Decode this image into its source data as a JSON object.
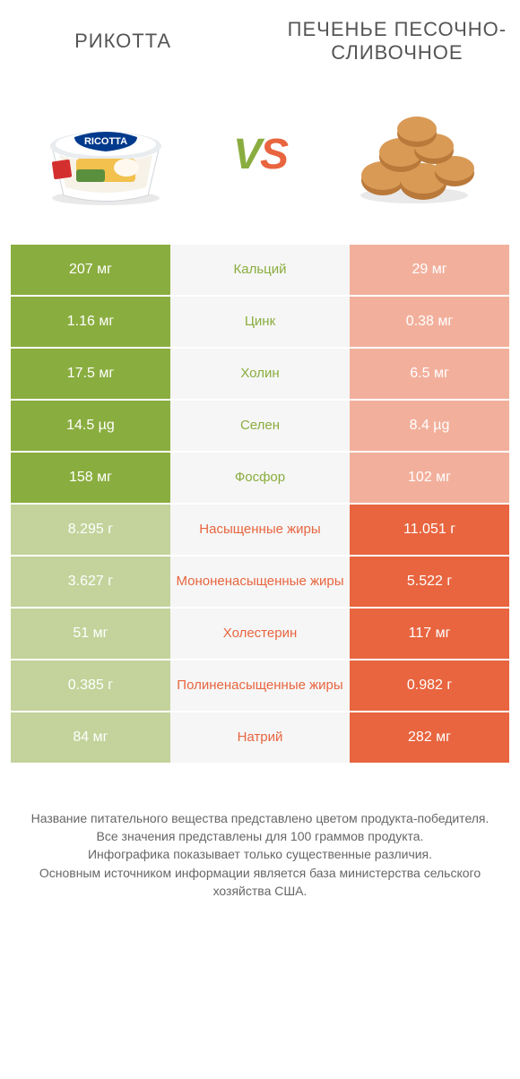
{
  "left": {
    "title": "РИКОТТА",
    "color_full": "#8aad3f",
    "color_faded": "#c3d39b"
  },
  "right": {
    "title": "ПЕЧЕНЬЕ ПЕСОЧНО-СЛИВОЧНОЕ",
    "color_full": "#e8653f",
    "color_faded": "#f2b09c"
  },
  "vs": {
    "label_v": "V",
    "label_s": "S"
  },
  "mid_bg": "#f6f6f6",
  "rows": [
    {
      "label": "Кальций",
      "left_val": "207 мг",
      "right_val": "29 мг",
      "winner": "left"
    },
    {
      "label": "Цинк",
      "left_val": "1.16 мг",
      "right_val": "0.38 мг",
      "winner": "left"
    },
    {
      "label": "Холин",
      "left_val": "17.5 мг",
      "right_val": "6.5 мг",
      "winner": "left"
    },
    {
      "label": "Селен",
      "left_val": "14.5 µg",
      "right_val": "8.4 µg",
      "winner": "left"
    },
    {
      "label": "Фосфор",
      "left_val": "158 мг",
      "right_val": "102 мг",
      "winner": "left"
    },
    {
      "label": "Насыщенные жиры",
      "left_val": "8.295 г",
      "right_val": "11.051 г",
      "winner": "right"
    },
    {
      "label": "Мононенасыщенные жиры",
      "left_val": "3.627 г",
      "right_val": "5.522 г",
      "winner": "right"
    },
    {
      "label": "Холестерин",
      "left_val": "51 мг",
      "right_val": "117 мг",
      "winner": "right"
    },
    {
      "label": "Полиненасыщенные жиры",
      "left_val": "0.385 г",
      "right_val": "0.982 г",
      "winner": "right"
    },
    {
      "label": "Натрий",
      "left_val": "84 мг",
      "right_val": "282 мг",
      "winner": "right"
    }
  ],
  "footer": {
    "line1": "Название питательного вещества представлено цветом продукта-победителя.",
    "line2": "Все значения представлены для 100 граммов продукта.",
    "line3": "Инфографика показывает только существенные различия.",
    "line4": "Основным источником информации является база министерства сельского хозяйства США."
  },
  "ricotta_art": {
    "tub_top": "#e8ecef",
    "tub_body": "#ffffff",
    "tub_shadow": "#cfd6db",
    "label_band": "#003a8c",
    "label_photo1": "#f2c14e",
    "label_photo2": "#5a8f3e",
    "badge": "#d42f2f",
    "text": "RICOTTA"
  },
  "cookies_art": {
    "cookie_fill": "#d99a56",
    "cookie_edge": "#b9793a",
    "shadow": "#e9e9e9"
  }
}
